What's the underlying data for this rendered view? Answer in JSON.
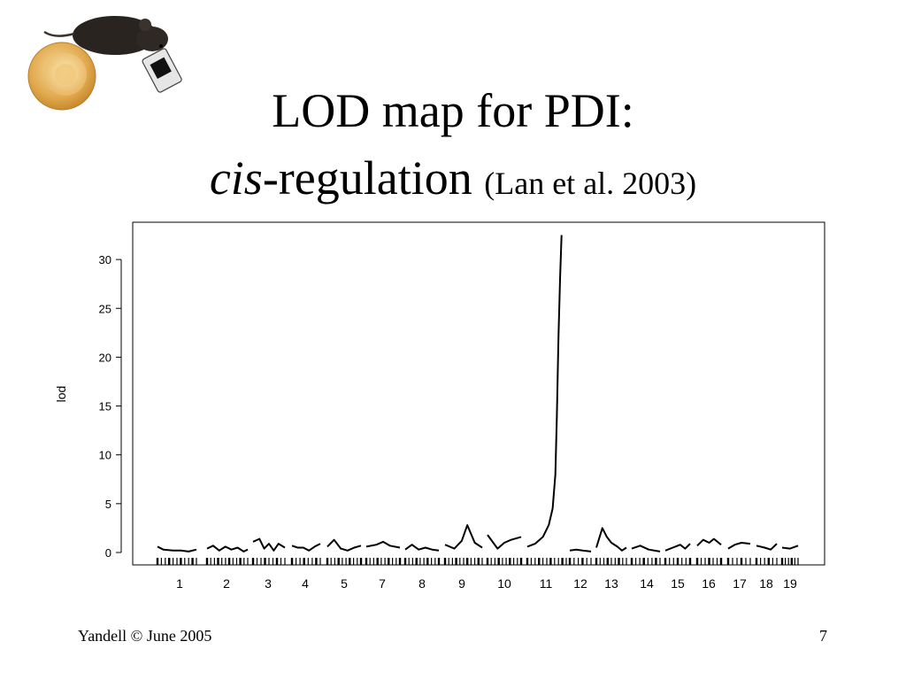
{
  "slide": {
    "title_line1": "LOD map for PDI:",
    "title_cis": "cis",
    "title_rest": "-regulation",
    "title_cite": "(Lan et al. 2003)",
    "footer_left": "Yandell © June 2005",
    "page_number": "7"
  },
  "chart_data": {
    "type": "line",
    "ylabel": "lod",
    "ylim": [
      0,
      33
    ],
    "yticks": [
      0,
      5,
      10,
      15,
      20,
      25,
      30
    ],
    "categories": [
      "1",
      "2",
      "3",
      "4",
      "5",
      "7",
      "8",
      "9",
      "10",
      "11",
      "12",
      "13",
      "14",
      "15",
      "16",
      "17",
      "18",
      "19"
    ],
    "grid": false,
    "legend": "none",
    "chromosomes": [
      {
        "label": "1",
        "points": [
          [
            0.0,
            0.6
          ],
          [
            0.15,
            0.3
          ],
          [
            0.4,
            0.2
          ],
          [
            0.6,
            0.2
          ],
          [
            0.8,
            0.1
          ],
          [
            1.0,
            0.3
          ]
        ]
      },
      {
        "label": "2",
        "points": [
          [
            0.0,
            0.4
          ],
          [
            0.15,
            0.7
          ],
          [
            0.3,
            0.2
          ],
          [
            0.45,
            0.6
          ],
          [
            0.6,
            0.3
          ],
          [
            0.75,
            0.5
          ],
          [
            0.9,
            0.1
          ],
          [
            1.0,
            0.3
          ]
        ]
      },
      {
        "label": "3",
        "points": [
          [
            0.0,
            1.1
          ],
          [
            0.2,
            1.4
          ],
          [
            0.35,
            0.4
          ],
          [
            0.5,
            0.9
          ],
          [
            0.65,
            0.2
          ],
          [
            0.8,
            0.9
          ],
          [
            1.0,
            0.5
          ]
        ]
      },
      {
        "label": "4",
        "points": [
          [
            0.0,
            0.7
          ],
          [
            0.2,
            0.5
          ],
          [
            0.4,
            0.5
          ],
          [
            0.6,
            0.2
          ],
          [
            0.8,
            0.6
          ],
          [
            1.0,
            0.9
          ]
        ]
      },
      {
        "label": "5",
        "points": [
          [
            0.0,
            0.6
          ],
          [
            0.2,
            1.3
          ],
          [
            0.4,
            0.4
          ],
          [
            0.6,
            0.2
          ],
          [
            0.8,
            0.5
          ],
          [
            1.0,
            0.7
          ]
        ]
      },
      {
        "label": "7",
        "points": [
          [
            0.0,
            0.6
          ],
          [
            0.3,
            0.8
          ],
          [
            0.5,
            1.1
          ],
          [
            0.7,
            0.7
          ],
          [
            1.0,
            0.5
          ]
        ]
      },
      {
        "label": "8",
        "points": [
          [
            0.0,
            0.3
          ],
          [
            0.2,
            0.8
          ],
          [
            0.4,
            0.3
          ],
          [
            0.6,
            0.5
          ],
          [
            0.8,
            0.3
          ],
          [
            1.0,
            0.2
          ]
        ]
      },
      {
        "label": "9",
        "points": [
          [
            0.0,
            0.8
          ],
          [
            0.25,
            0.4
          ],
          [
            0.45,
            1.2
          ],
          [
            0.6,
            2.8
          ],
          [
            0.8,
            1.0
          ],
          [
            1.0,
            0.5
          ]
        ]
      },
      {
        "label": "10",
        "points": [
          [
            0.0,
            1.8
          ],
          [
            0.3,
            0.4
          ],
          [
            0.5,
            1.0
          ],
          [
            0.7,
            1.3
          ],
          [
            1.0,
            1.6
          ]
        ]
      },
      {
        "label": "11",
        "points": [
          [
            0.0,
            0.6
          ],
          [
            0.2,
            0.9
          ],
          [
            0.4,
            1.6
          ],
          [
            0.55,
            2.8
          ],
          [
            0.65,
            4.5
          ],
          [
            0.72,
            8.0
          ],
          [
            0.76,
            14.0
          ],
          [
            0.8,
            22.0
          ],
          [
            0.84,
            28.0
          ],
          [
            0.88,
            32.5
          ]
        ]
      },
      {
        "label": "12",
        "points": [
          [
            0.0,
            0.2
          ],
          [
            0.3,
            0.3
          ],
          [
            0.6,
            0.2
          ],
          [
            1.0,
            0.1
          ]
        ]
      },
      {
        "label": "13",
        "points": [
          [
            0.0,
            0.5
          ],
          [
            0.2,
            2.5
          ],
          [
            0.35,
            1.6
          ],
          [
            0.5,
            1.0
          ],
          [
            0.7,
            0.6
          ],
          [
            0.85,
            0.2
          ],
          [
            1.0,
            0.5
          ]
        ]
      },
      {
        "label": "14",
        "points": [
          [
            0.0,
            0.4
          ],
          [
            0.3,
            0.7
          ],
          [
            0.6,
            0.3
          ],
          [
            1.0,
            0.1
          ]
        ]
      },
      {
        "label": "15",
        "points": [
          [
            0.0,
            0.2
          ],
          [
            0.4,
            0.6
          ],
          [
            0.6,
            0.8
          ],
          [
            0.8,
            0.4
          ],
          [
            1.0,
            0.9
          ]
        ]
      },
      {
        "label": "16",
        "points": [
          [
            0.0,
            0.7
          ],
          [
            0.25,
            1.3
          ],
          [
            0.5,
            1.0
          ],
          [
            0.7,
            1.4
          ],
          [
            1.0,
            0.8
          ]
        ]
      },
      {
        "label": "17",
        "points": [
          [
            0.0,
            0.4
          ],
          [
            0.3,
            0.8
          ],
          [
            0.6,
            1.0
          ],
          [
            1.0,
            0.9
          ]
        ]
      },
      {
        "label": "18",
        "points": [
          [
            0.0,
            0.7
          ],
          [
            0.4,
            0.5
          ],
          [
            0.7,
            0.3
          ],
          [
            1.0,
            0.9
          ]
        ]
      },
      {
        "label": "19",
        "points": [
          [
            0.0,
            0.5
          ],
          [
            0.5,
            0.4
          ],
          [
            1.0,
            0.7
          ]
        ]
      }
    ]
  }
}
